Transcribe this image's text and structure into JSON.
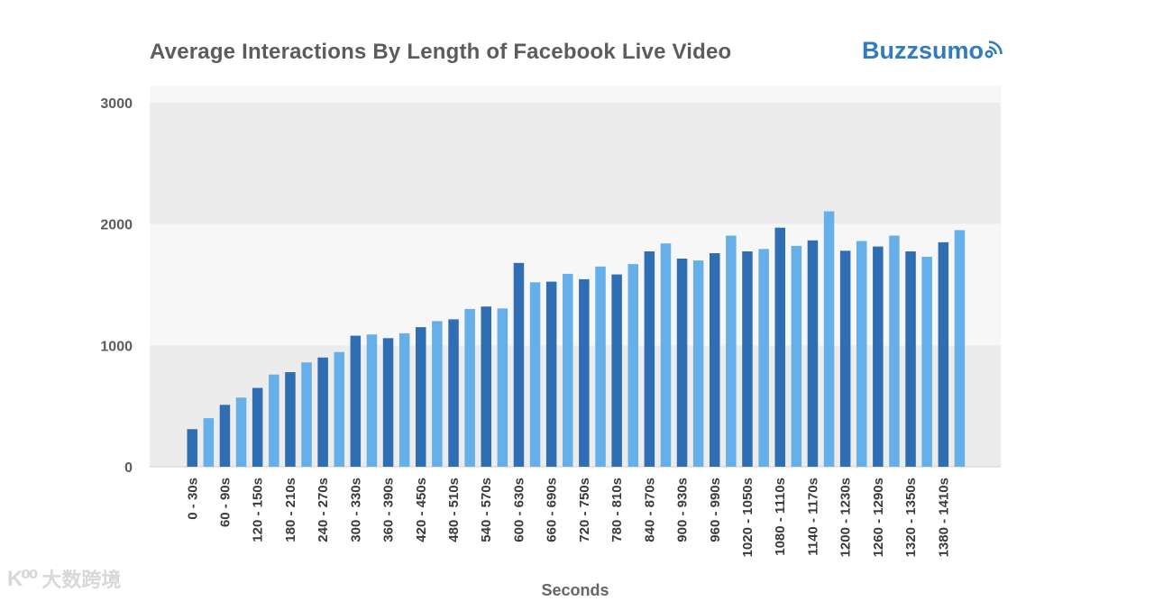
{
  "title": "Average Interactions By Length of Facebook Live Video",
  "brand": "Buzzsumo",
  "watermark": "大数跨境",
  "colors": {
    "dark_bar": "#2f6eb3",
    "light_bar": "#66afe8",
    "band_shade": "#ececed",
    "band_light": "#f7f7f8",
    "brand": "#2f7cbf"
  },
  "chart_data": {
    "type": "bar",
    "title": "Average Interactions By Length of Facebook Live Video",
    "xlabel": "Seconds",
    "ylabel": "",
    "ylim": [
      0,
      3000
    ],
    "yticks": [
      "0",
      "1000",
      "2000",
      "3000"
    ],
    "grid": "horizontal bands",
    "labeled_categories": [
      "0 - 30s",
      "60 - 90s",
      "120 - 150s",
      "180 - 210s",
      "240 - 270s",
      "300 - 330s",
      "360 - 390s",
      "420 - 450s",
      "480 - 510s",
      "540 - 570s",
      "600 - 630s",
      "660 - 690s",
      "720 - 750s",
      "780 - 810s",
      "840 - 870s",
      "900 - 930s",
      "960 - 990s",
      "1020 - 1050s",
      "1080 - 1110s",
      "1140 - 1170s",
      "1200 - 1230s",
      "1260 - 1290s",
      "1320 - 1350s",
      "1380 - 1410s"
    ],
    "values": [
      310,
      400,
      510,
      570,
      650,
      760,
      780,
      860,
      900,
      945,
      1080,
      1090,
      1060,
      1100,
      1150,
      1200,
      1215,
      1300,
      1320,
      1305,
      1680,
      1520,
      1525,
      1590,
      1545,
      1650,
      1585,
      1670,
      1775,
      1840,
      1715,
      1700,
      1760,
      1905,
      1775,
      1795,
      1970,
      1820,
      1865,
      2105,
      1780,
      1860,
      1815,
      1905,
      1775,
      1730,
      1850,
      1950
    ]
  }
}
